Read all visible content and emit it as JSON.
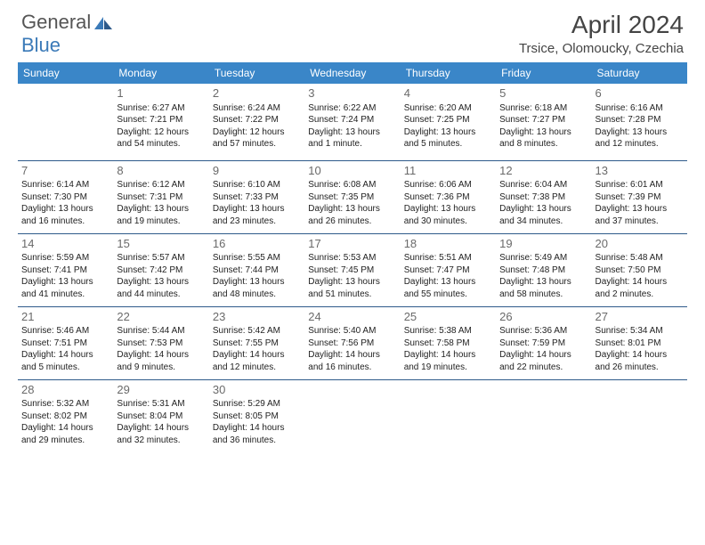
{
  "logo": {
    "text1": "General",
    "text2": "Blue"
  },
  "header": {
    "month_title": "April 2024",
    "location": "Trsice, Olomoucky, Czechia"
  },
  "day_headers": [
    "Sunday",
    "Monday",
    "Tuesday",
    "Wednesday",
    "Thursday",
    "Friday",
    "Saturday"
  ],
  "colors": {
    "header_bg": "#3a86c8",
    "header_text": "#ffffff",
    "row_border": "#2e5a8a",
    "logo_blue": "#3b7ab8"
  },
  "weeks": [
    [
      {
        "num": "",
        "sunrise": "",
        "sunset": "",
        "daylight": ""
      },
      {
        "num": "1",
        "sunrise": "Sunrise: 6:27 AM",
        "sunset": "Sunset: 7:21 PM",
        "daylight": "Daylight: 12 hours and 54 minutes."
      },
      {
        "num": "2",
        "sunrise": "Sunrise: 6:24 AM",
        "sunset": "Sunset: 7:22 PM",
        "daylight": "Daylight: 12 hours and 57 minutes."
      },
      {
        "num": "3",
        "sunrise": "Sunrise: 6:22 AM",
        "sunset": "Sunset: 7:24 PM",
        "daylight": "Daylight: 13 hours and 1 minute."
      },
      {
        "num": "4",
        "sunrise": "Sunrise: 6:20 AM",
        "sunset": "Sunset: 7:25 PM",
        "daylight": "Daylight: 13 hours and 5 minutes."
      },
      {
        "num": "5",
        "sunrise": "Sunrise: 6:18 AM",
        "sunset": "Sunset: 7:27 PM",
        "daylight": "Daylight: 13 hours and 8 minutes."
      },
      {
        "num": "6",
        "sunrise": "Sunrise: 6:16 AM",
        "sunset": "Sunset: 7:28 PM",
        "daylight": "Daylight: 13 hours and 12 minutes."
      }
    ],
    [
      {
        "num": "7",
        "sunrise": "Sunrise: 6:14 AM",
        "sunset": "Sunset: 7:30 PM",
        "daylight": "Daylight: 13 hours and 16 minutes."
      },
      {
        "num": "8",
        "sunrise": "Sunrise: 6:12 AM",
        "sunset": "Sunset: 7:31 PM",
        "daylight": "Daylight: 13 hours and 19 minutes."
      },
      {
        "num": "9",
        "sunrise": "Sunrise: 6:10 AM",
        "sunset": "Sunset: 7:33 PM",
        "daylight": "Daylight: 13 hours and 23 minutes."
      },
      {
        "num": "10",
        "sunrise": "Sunrise: 6:08 AM",
        "sunset": "Sunset: 7:35 PM",
        "daylight": "Daylight: 13 hours and 26 minutes."
      },
      {
        "num": "11",
        "sunrise": "Sunrise: 6:06 AM",
        "sunset": "Sunset: 7:36 PM",
        "daylight": "Daylight: 13 hours and 30 minutes."
      },
      {
        "num": "12",
        "sunrise": "Sunrise: 6:04 AM",
        "sunset": "Sunset: 7:38 PM",
        "daylight": "Daylight: 13 hours and 34 minutes."
      },
      {
        "num": "13",
        "sunrise": "Sunrise: 6:01 AM",
        "sunset": "Sunset: 7:39 PM",
        "daylight": "Daylight: 13 hours and 37 minutes."
      }
    ],
    [
      {
        "num": "14",
        "sunrise": "Sunrise: 5:59 AM",
        "sunset": "Sunset: 7:41 PM",
        "daylight": "Daylight: 13 hours and 41 minutes."
      },
      {
        "num": "15",
        "sunrise": "Sunrise: 5:57 AM",
        "sunset": "Sunset: 7:42 PM",
        "daylight": "Daylight: 13 hours and 44 minutes."
      },
      {
        "num": "16",
        "sunrise": "Sunrise: 5:55 AM",
        "sunset": "Sunset: 7:44 PM",
        "daylight": "Daylight: 13 hours and 48 minutes."
      },
      {
        "num": "17",
        "sunrise": "Sunrise: 5:53 AM",
        "sunset": "Sunset: 7:45 PM",
        "daylight": "Daylight: 13 hours and 51 minutes."
      },
      {
        "num": "18",
        "sunrise": "Sunrise: 5:51 AM",
        "sunset": "Sunset: 7:47 PM",
        "daylight": "Daylight: 13 hours and 55 minutes."
      },
      {
        "num": "19",
        "sunrise": "Sunrise: 5:49 AM",
        "sunset": "Sunset: 7:48 PM",
        "daylight": "Daylight: 13 hours and 58 minutes."
      },
      {
        "num": "20",
        "sunrise": "Sunrise: 5:48 AM",
        "sunset": "Sunset: 7:50 PM",
        "daylight": "Daylight: 14 hours and 2 minutes."
      }
    ],
    [
      {
        "num": "21",
        "sunrise": "Sunrise: 5:46 AM",
        "sunset": "Sunset: 7:51 PM",
        "daylight": "Daylight: 14 hours and 5 minutes."
      },
      {
        "num": "22",
        "sunrise": "Sunrise: 5:44 AM",
        "sunset": "Sunset: 7:53 PM",
        "daylight": "Daylight: 14 hours and 9 minutes."
      },
      {
        "num": "23",
        "sunrise": "Sunrise: 5:42 AM",
        "sunset": "Sunset: 7:55 PM",
        "daylight": "Daylight: 14 hours and 12 minutes."
      },
      {
        "num": "24",
        "sunrise": "Sunrise: 5:40 AM",
        "sunset": "Sunset: 7:56 PM",
        "daylight": "Daylight: 14 hours and 16 minutes."
      },
      {
        "num": "25",
        "sunrise": "Sunrise: 5:38 AM",
        "sunset": "Sunset: 7:58 PM",
        "daylight": "Daylight: 14 hours and 19 minutes."
      },
      {
        "num": "26",
        "sunrise": "Sunrise: 5:36 AM",
        "sunset": "Sunset: 7:59 PM",
        "daylight": "Daylight: 14 hours and 22 minutes."
      },
      {
        "num": "27",
        "sunrise": "Sunrise: 5:34 AM",
        "sunset": "Sunset: 8:01 PM",
        "daylight": "Daylight: 14 hours and 26 minutes."
      }
    ],
    [
      {
        "num": "28",
        "sunrise": "Sunrise: 5:32 AM",
        "sunset": "Sunset: 8:02 PM",
        "daylight": "Daylight: 14 hours and 29 minutes."
      },
      {
        "num": "29",
        "sunrise": "Sunrise: 5:31 AM",
        "sunset": "Sunset: 8:04 PM",
        "daylight": "Daylight: 14 hours and 32 minutes."
      },
      {
        "num": "30",
        "sunrise": "Sunrise: 5:29 AM",
        "sunset": "Sunset: 8:05 PM",
        "daylight": "Daylight: 14 hours and 36 minutes."
      },
      {
        "num": "",
        "sunrise": "",
        "sunset": "",
        "daylight": ""
      },
      {
        "num": "",
        "sunrise": "",
        "sunset": "",
        "daylight": ""
      },
      {
        "num": "",
        "sunrise": "",
        "sunset": "",
        "daylight": ""
      },
      {
        "num": "",
        "sunrise": "",
        "sunset": "",
        "daylight": ""
      }
    ]
  ]
}
